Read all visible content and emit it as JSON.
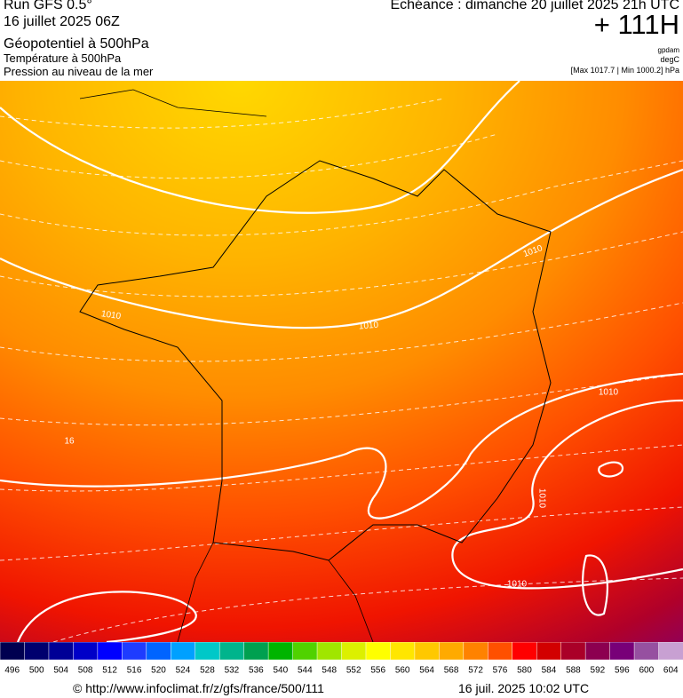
{
  "header": {
    "left": [
      "Run GFS 0.5°",
      "16 juillet 2025 06Z",
      "Géopotentiel à 500hPa",
      "Température à 500hPa",
      "Pression au niveau de la mer"
    ],
    "right_title": "Echéance : dimanche 20 juillet 2025 21h UTC",
    "lead": "+ 111H",
    "units": [
      "gpdam",
      "degC"
    ],
    "range": "[Max 1017.7 | Min 1000.2] hPa"
  },
  "map": {
    "pressure_labels": [
      "1010",
      "1010",
      "1010",
      "1010",
      "1010",
      "1010"
    ],
    "temperature_labels": [
      "16"
    ]
  },
  "colorbar": {
    "labels": [
      496,
      500,
      504,
      508,
      512,
      516,
      520,
      524,
      528,
      532,
      536,
      540,
      544,
      548,
      552,
      556,
      560,
      564,
      568,
      572,
      576,
      580,
      584,
      588,
      592,
      596,
      600,
      604
    ],
    "colors": [
      "#000050",
      "#00006e",
      "#000096",
      "#0000c8",
      "#0000ff",
      "#1e3cff",
      "#0064ff",
      "#00a0ff",
      "#00c8c8",
      "#00b48c",
      "#00a050",
      "#00b400",
      "#50d200",
      "#a0e600",
      "#dcf000",
      "#ffff00",
      "#ffe600",
      "#ffc800",
      "#ffaa00",
      "#ff8200",
      "#ff5000",
      "#ff0000",
      "#d20000",
      "#aa0028",
      "#8c0050",
      "#780078",
      "#9650a0",
      "#c8a0d2"
    ]
  },
  "footer": {
    "url": "© http://www.infoclimat.fr/z/gfs/france/500/111",
    "timestamp": "16 juil. 2025 10:02 UTC"
  }
}
